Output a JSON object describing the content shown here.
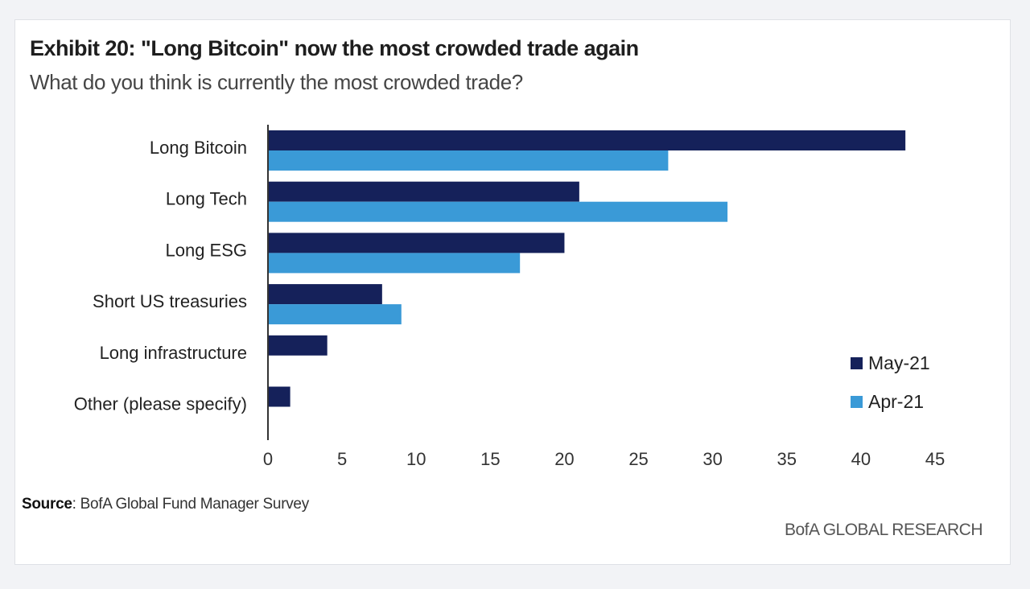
{
  "header": {
    "title": "Exhibit 20: \"Long Bitcoin\" now the most crowded trade again",
    "subtitle": "What do you think is currently the most crowded trade?"
  },
  "footer": {
    "source_label": "Source",
    "source_text": ": BofA Global Fund Manager Survey",
    "brand": "BofA GLOBAL RESEARCH"
  },
  "colors": {
    "may": "#15215a",
    "apr": "#3a9ad7",
    "axis": "#333333"
  },
  "chart_data": {
    "type": "bar",
    "orientation": "horizontal",
    "categories": [
      "Long Bitcoin",
      "Long Tech",
      "Long ESG",
      "Short US treasuries",
      "Long infrastructure",
      "Other (please specify)"
    ],
    "series": [
      {
        "name": "May-21",
        "values": [
          43,
          21,
          20,
          7.7,
          4,
          1.5
        ]
      },
      {
        "name": "Apr-21",
        "values": [
          27,
          31,
          null,
          9,
          null,
          null
        ]
      }
    ],
    "apr_esg_value": 17,
    "xlim": [
      0,
      45
    ],
    "xticks": [
      0,
      5,
      10,
      15,
      20,
      25,
      30,
      35,
      40,
      45
    ],
    "grid": false,
    "legend_position": "right"
  }
}
